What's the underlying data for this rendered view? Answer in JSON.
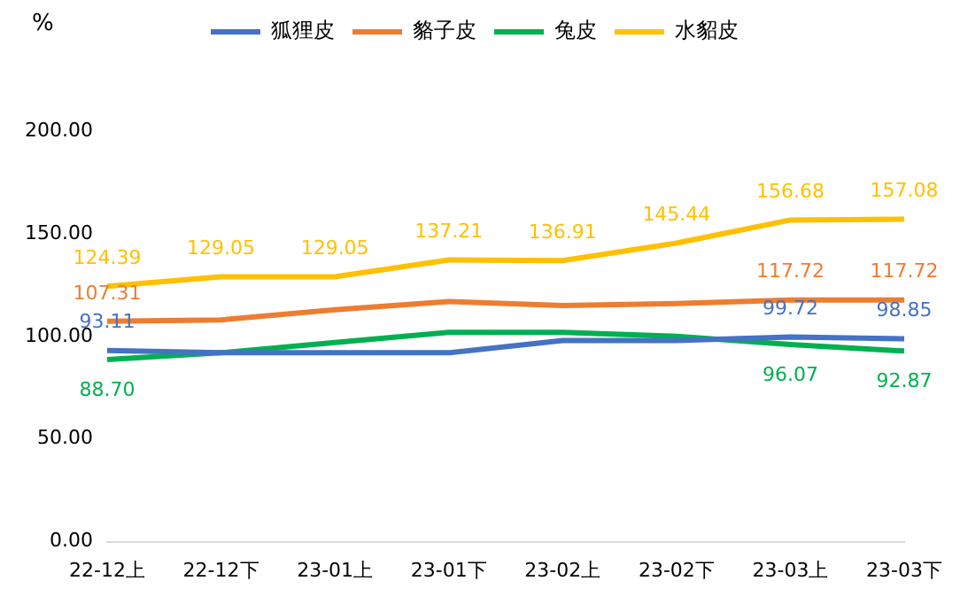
{
  "chart_data": {
    "type": "line",
    "ylabel": "%",
    "categories": [
      "22-12上",
      "22-12下",
      "23-01上",
      "23-01下",
      "23-02上",
      "23-02下",
      "23-03上",
      "23-03下"
    ],
    "series": [
      {
        "name": "狐狸皮",
        "color": "#4472c4",
        "values": [
          93.11,
          92,
          92,
          92,
          98,
          98,
          99.72,
          98.85
        ],
        "value_labels": [
          "93.11",
          null,
          null,
          null,
          null,
          null,
          "99.72",
          "98.85"
        ]
      },
      {
        "name": "貉子皮",
        "color": "#ed7d31",
        "values": [
          107.31,
          108,
          113,
          117,
          115,
          116,
          117.72,
          117.72
        ],
        "value_labels": [
          "107.31",
          null,
          null,
          null,
          null,
          null,
          "117.72",
          "117.72"
        ]
      },
      {
        "name": "兔皮",
        "color": "#00b050",
        "values": [
          88.7,
          92,
          97,
          102,
          102,
          100,
          96.07,
          92.87
        ],
        "value_labels": [
          "88.70",
          null,
          null,
          null,
          null,
          null,
          "96.07",
          "92.87"
        ]
      },
      {
        "name": "水貂皮",
        "color": "#ffc000",
        "values": [
          124.39,
          129.05,
          129.05,
          137.21,
          136.91,
          145.44,
          156.68,
          157.08
        ],
        "value_labels": [
          "124.39",
          "129.05",
          "129.05",
          "137.21",
          "136.91",
          "145.44",
          "156.68",
          "157.08"
        ]
      }
    ],
    "ylim": [
      0,
      200
    ],
    "yticks": [
      {
        "value": 0,
        "label": "0.00"
      },
      {
        "value": 50,
        "label": "50.00"
      },
      {
        "value": 100,
        "label": "100.00"
      },
      {
        "value": 150,
        "label": "150.00"
      },
      {
        "value": 200,
        "label": "200.00"
      }
    ],
    "grid": false,
    "legend": "top",
    "marker": "none",
    "line_style": "solid"
  }
}
